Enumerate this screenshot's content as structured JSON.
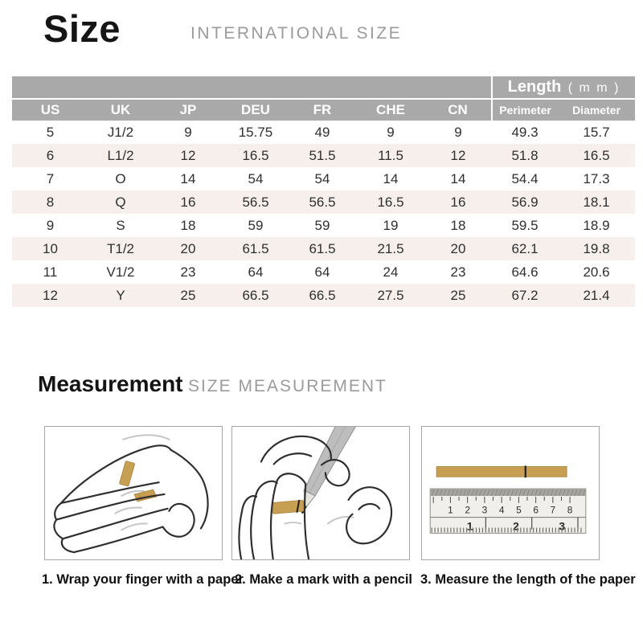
{
  "page": {
    "title": "Size",
    "subtitle": "INTERNATIONAL SIZE"
  },
  "table": {
    "length_group": {
      "label": "Length",
      "unit": "( m m )"
    },
    "columns": [
      "US",
      "UK",
      "JP",
      "DEU",
      "FR",
      "CHE",
      "CN",
      "Perimeter",
      "Diameter"
    ],
    "rows": [
      [
        "5",
        "J1/2",
        "9",
        "15.75",
        "49",
        "9",
        "9",
        "49.3",
        "15.7"
      ],
      [
        "6",
        "L1/2",
        "12",
        "16.5",
        "51.5",
        "11.5",
        "12",
        "51.8",
        "16.5"
      ],
      [
        "7",
        "O",
        "14",
        "54",
        "54",
        "14",
        "14",
        "54.4",
        "17.3"
      ],
      [
        "8",
        "Q",
        "16",
        "56.5",
        "56.5",
        "16.5",
        "16",
        "56.9",
        "18.1"
      ],
      [
        "9",
        "S",
        "18",
        "59",
        "59",
        "19",
        "18",
        "59.5",
        "18.9"
      ],
      [
        "10",
        "T1/2",
        "20",
        "61.5",
        "61.5",
        "21.5",
        "20",
        "62.1",
        "19.8"
      ],
      [
        "11",
        "V1/2",
        "23",
        "64",
        "64",
        "24",
        "23",
        "64.6",
        "20.6"
      ],
      [
        "12",
        "Y",
        "25",
        "66.5",
        "66.5",
        "27.5",
        "25",
        "67.2",
        "21.4"
      ]
    ]
  },
  "measurement": {
    "title": "Measurement",
    "subtitle": "SIZE MEASUREMENT",
    "steps": [
      {
        "caption": "1. Wrap your finger with a paper"
      },
      {
        "caption": "2. Make a mark with a pencil"
      },
      {
        "caption": "3. Measure the length of the paper"
      }
    ],
    "ruler": {
      "cm": [
        "1",
        "2",
        "3",
        "4",
        "5",
        "6",
        "7",
        "8"
      ],
      "inch": [
        "1",
        "2",
        "3"
      ]
    }
  },
  "colors": {
    "header_gray": "#a9a9a9",
    "row_alt": "#f6efec",
    "paper_gold": "#c79f52",
    "text_dark": "#2f2f2f",
    "text_gray": "#9b9b9b"
  }
}
